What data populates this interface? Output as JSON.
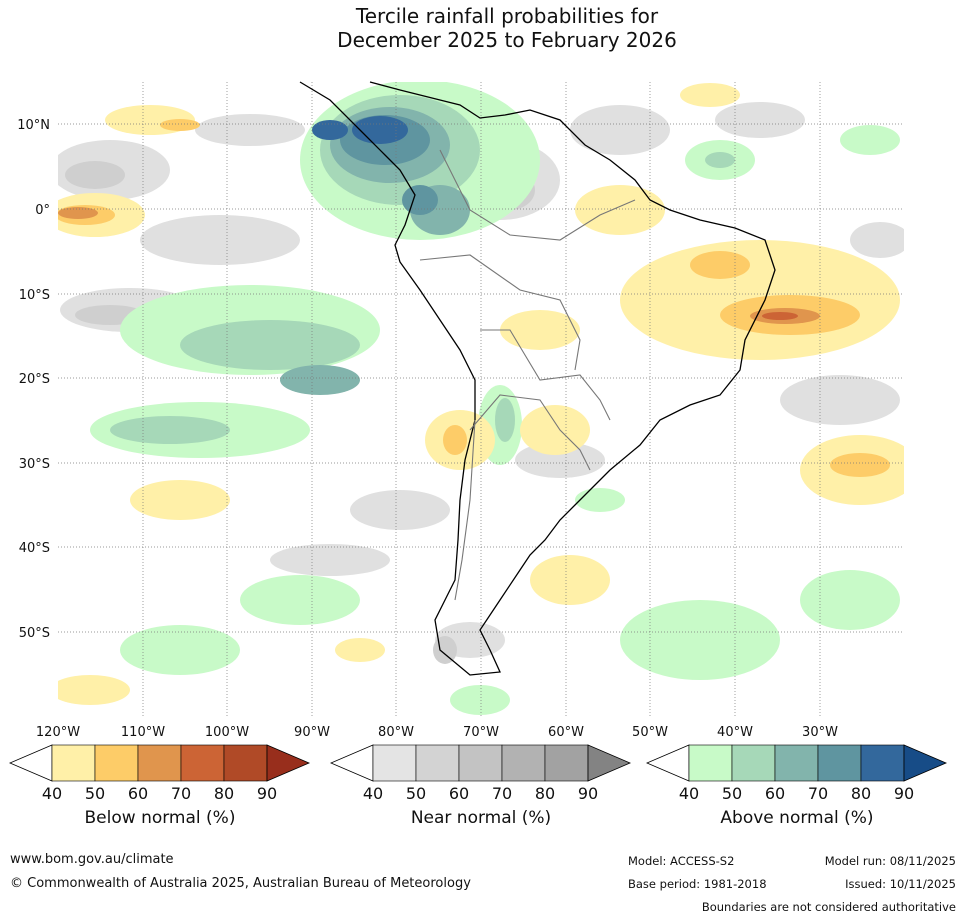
{
  "title": {
    "line1": "Tercile rainfall probabilities for",
    "line2": "December 2025 to February 2026"
  },
  "map": {
    "lat_labels": [
      "10°N",
      "0°",
      "10°S",
      "20°S",
      "30°S",
      "40°S",
      "50°S"
    ],
    "lon_labels": [
      "120°W",
      "110°W",
      "100°W",
      "90°W",
      "80°W",
      "70°W",
      "60°W",
      "50°W",
      "40°W",
      "30°W"
    ],
    "lat_values": [
      10,
      0,
      -10,
      -20,
      -30,
      -40,
      -50
    ],
    "lon_values": [
      -120,
      -110,
      -100,
      -90,
      -80,
      -70,
      -60,
      -50,
      -40,
      -30
    ],
    "lon_range": [
      -120,
      -20
    ],
    "lat_range": [
      -60,
      15
    ]
  },
  "colorbars": [
    {
      "name": "below",
      "label": "Below normal (%)",
      "ticks": [
        "40",
        "50",
        "60",
        "70",
        "80",
        "90"
      ],
      "colors": [
        "#fff0a8",
        "#fdcc68",
        "#e0954d",
        "#cc6435",
        "#b04a27",
        "#982e1c"
      ]
    },
    {
      "name": "near",
      "label": "Near normal (%)",
      "ticks": [
        "40",
        "50",
        "60",
        "70",
        "80",
        "90"
      ],
      "colors": [
        "#e4e4e4",
        "#d3d3d3",
        "#c3c3c3",
        "#b2b2b2",
        "#a2a2a2",
        "#838383"
      ]
    },
    {
      "name": "above",
      "label": "Above normal (%)",
      "ticks": [
        "40",
        "50",
        "60",
        "70",
        "80",
        "90"
      ],
      "colors": [
        "#c8fac8",
        "#a6d8b8",
        "#82b4ac",
        "#5f95a0",
        "#33689c",
        "#174c87"
      ]
    }
  ],
  "footer": {
    "url": "www.bom.gov.au/climate",
    "copyright": "© Commonwealth of Australia 2025, Australian Bureau of Meteorology",
    "model": "Model: ACCESS-S2",
    "model_run": "Model run: 08/11/2025",
    "base_period": "Base period: 1981-2018",
    "issued": "Issued: 10/11/2025",
    "disclaimer": "Boundaries are not considered authoritative"
  }
}
